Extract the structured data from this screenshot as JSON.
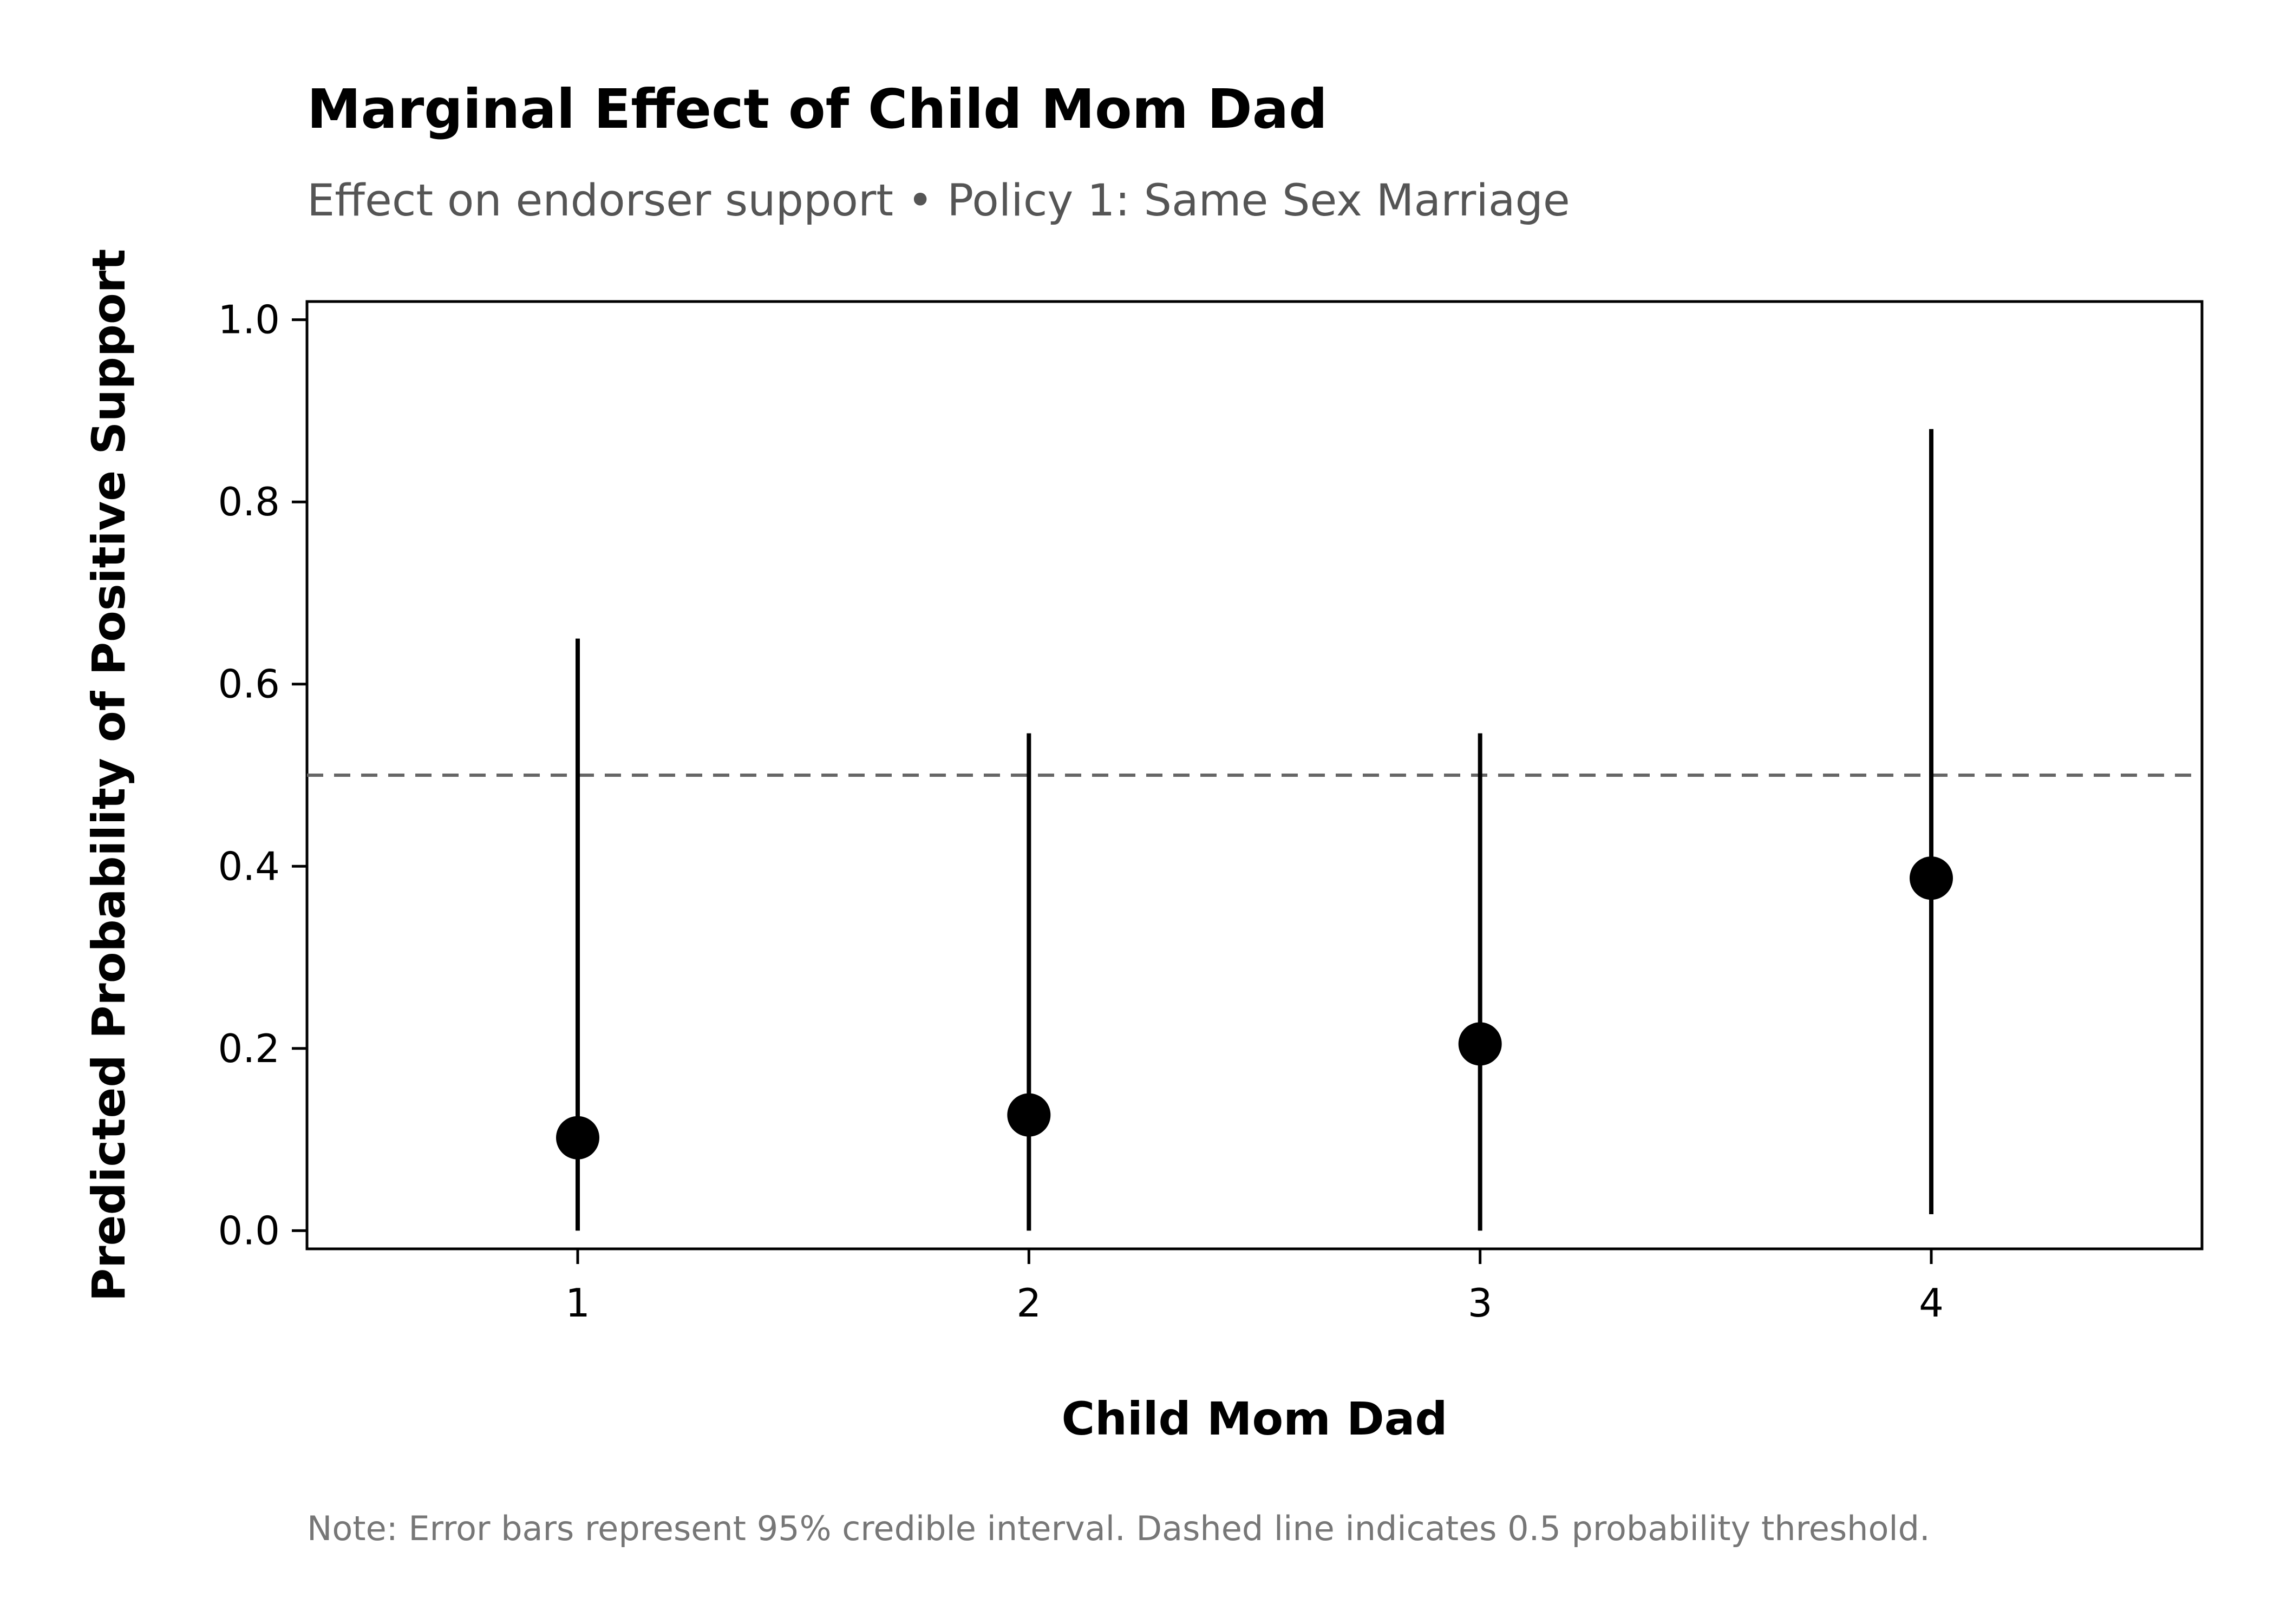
{
  "chart_data": {
    "type": "scatter",
    "title": "Marginal Effect of Child Mom Dad",
    "subtitle": "Effect on endorser support • Policy 1: Same Sex Marriage",
    "xlabel": "Child Mom Dad",
    "ylabel": "Predicted Probability of Positive Support",
    "categories": [
      "1",
      "2",
      "3",
      "4"
    ],
    "x": [
      1,
      2,
      3,
      4
    ],
    "xlim": [
      0.4,
      4.6
    ],
    "ylim": [
      -0.02,
      1.02
    ],
    "y_ticks": [
      0.0,
      0.2,
      0.4,
      0.6,
      0.8,
      1.0
    ],
    "y_tick_labels": [
      "0.0",
      "0.2",
      "0.4",
      "0.6",
      "0.8",
      "1.0"
    ],
    "series": [
      {
        "estimate": [
          0.102,
          0.127,
          0.205,
          0.387
        ],
        "ci_lower": [
          0.0,
          0.0,
          0.0,
          0.018
        ],
        "ci_upper": [
          0.65,
          0.546,
          0.546,
          0.88
        ]
      }
    ],
    "reference_line": {
      "y": 0.5,
      "style": "dashed",
      "color": "#666666"
    },
    "point_color": "#000000",
    "grid": false,
    "legend": "none",
    "note": "Note: Error bars represent 95% credible interval. Dashed line indicates 0.5 probability threshold."
  }
}
